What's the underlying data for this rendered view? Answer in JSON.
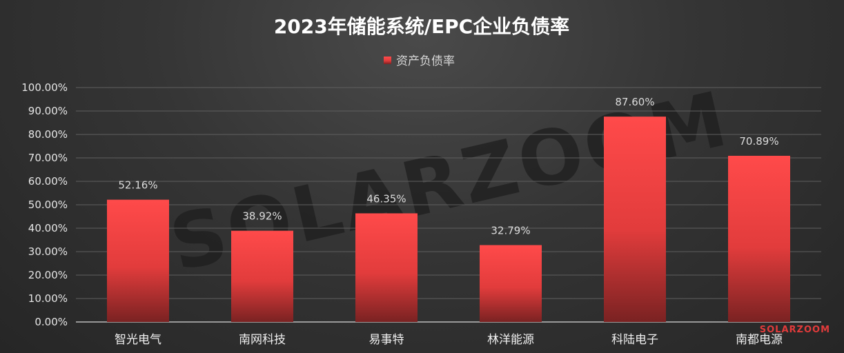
{
  "chart_data": {
    "type": "bar",
    "title": "2023年储能系统/EPC企业负债率",
    "legend": {
      "position": "top",
      "entries": [
        "资产负债率"
      ]
    },
    "categories": [
      "智光电气",
      "南网科技",
      "易事特",
      "林洋能源",
      "科陆电子",
      "南都电源"
    ],
    "series": [
      {
        "name": "资产负债率",
        "values": [
          52.16,
          38.92,
          46.35,
          32.79,
          87.6,
          70.89
        ],
        "color": "#f04040"
      }
    ],
    "data_labels": [
      "52.16%",
      "38.92%",
      "46.35%",
      "32.79%",
      "87.60%",
      "70.89%"
    ],
    "ylim": [
      0,
      100
    ],
    "yticks": [
      "0.00%",
      "10.00%",
      "20.00%",
      "30.00%",
      "40.00%",
      "50.00%",
      "60.00%",
      "70.00%",
      "80.00%",
      "90.00%",
      "100.00%"
    ],
    "grid": true
  },
  "watermark": "SOLARZOOM",
  "brand": "SOLARZOOM"
}
